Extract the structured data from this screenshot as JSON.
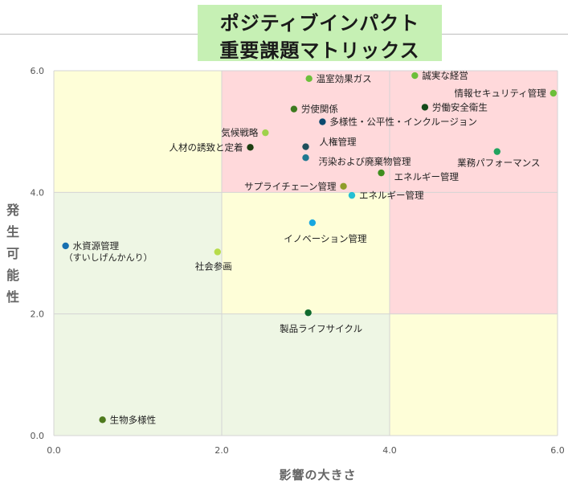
{
  "chart_data": {
    "type": "scatter",
    "title_lines": [
      "ポジティブインパクト",
      "重要課題マトリックス"
    ],
    "xlabel": "影響の大きさ",
    "ylabel": "発生可能性",
    "xlim": [
      0,
      6
    ],
    "ylim": [
      0,
      6
    ],
    "x_ticks": [
      "0.0",
      "2.0",
      "4.0",
      "6.0"
    ],
    "y_ticks": [
      "0.0",
      "2.0",
      "4.0",
      "6.0"
    ],
    "grid": true,
    "zones": [
      {
        "x": [
          0,
          2
        ],
        "y": [
          4,
          6
        ],
        "color": "#fefed8"
      },
      {
        "x": [
          2,
          6
        ],
        "y": [
          4,
          6
        ],
        "color": "#ffd9db"
      },
      {
        "x": [
          0,
          2
        ],
        "y": [
          0,
          4
        ],
        "color": "#eef6e4"
      },
      {
        "x": [
          2,
          4
        ],
        "y": [
          2,
          4
        ],
        "color": "#fefed8"
      },
      {
        "x": [
          4,
          6
        ],
        "y": [
          2,
          4
        ],
        "color": "#ffd9db"
      },
      {
        "x": [
          2,
          4
        ],
        "y": [
          0,
          2
        ],
        "color": "#eef6e4"
      },
      {
        "x": [
          4,
          6
        ],
        "y": [
          0,
          2
        ],
        "color": "#fefed8"
      }
    ],
    "points": [
      {
        "label": "温室効果ガス",
        "x": 3.04,
        "y": 5.87,
        "color": "#6cbf3a",
        "label_pos": "right"
      },
      {
        "label": "誠実な経営",
        "x": 4.3,
        "y": 5.92,
        "color": "#6cbf3a",
        "label_pos": "right"
      },
      {
        "label": "情報セキュリティ管理",
        "x": 5.95,
        "y": 5.63,
        "color": "#6cbf3a",
        "label_pos": "left"
      },
      {
        "label": "労使関係",
        "x": 2.86,
        "y": 5.37,
        "color": "#3d7a1f",
        "label_pos": "right"
      },
      {
        "label": "労働安全衛生",
        "x": 4.42,
        "y": 5.4,
        "color": "#154a1a",
        "label_pos": "right"
      },
      {
        "label": "多様性・公平性・インクルージョン",
        "x": 3.2,
        "y": 5.16,
        "color": "#0b4a6f",
        "label_pos": "right"
      },
      {
        "label": "気候戦略",
        "x": 2.52,
        "y": 4.98,
        "color": "#9fd24a",
        "label_pos": "left"
      },
      {
        "label": "人権管理",
        "x": 3.0,
        "y": 4.75,
        "color": "#1f4f5c",
        "label_pos": "right-up"
      },
      {
        "label": "人材の誘致と定着",
        "x": 2.34,
        "y": 4.74,
        "color": "#1e3f12",
        "label_pos": "left"
      },
      {
        "label": "汚染および廃棄物管理",
        "x": 3.0,
        "y": 4.57,
        "color": "#1e7891",
        "label_pos": "right-down"
      },
      {
        "label": "業務パフォーマンス",
        "x": 5.28,
        "y": 4.67,
        "color": "#21a35f",
        "label_pos": "below-left"
      },
      {
        "label": "エネルギー管理",
        "x": 3.9,
        "y": 4.32,
        "color": "#3e8e1e",
        "label_pos": "right-down"
      },
      {
        "label": "サプライチェーン管理",
        "x": 3.45,
        "y": 4.1,
        "color": "#8f9d2a",
        "label_pos": "left"
      },
      {
        "label": "エネルギー管理",
        "x": 3.55,
        "y": 3.95,
        "color": "#25c0d3",
        "label_pos": "right"
      },
      {
        "label": "イノベーション管理",
        "x": 3.08,
        "y": 3.5,
        "color": "#17a7e0",
        "label_pos": "below-right"
      },
      {
        "label": "水資源管理",
        "sublabel": "（すいしげんかんり）",
        "x": 0.14,
        "y": 3.12,
        "color": "#1770b0",
        "label_pos": "right"
      },
      {
        "label": "社会参画",
        "x": 1.95,
        "y": 3.02,
        "color": "#b7dc4a",
        "label_pos": "below"
      },
      {
        "label": "製品ライフサイクル",
        "x": 3.03,
        "y": 2.02,
        "color": "#0f6a2e",
        "label_pos": "below-right"
      },
      {
        "label": "生物多様性",
        "x": 0.58,
        "y": 0.26,
        "color": "#4e7a1d",
        "label_pos": "right"
      }
    ]
  }
}
